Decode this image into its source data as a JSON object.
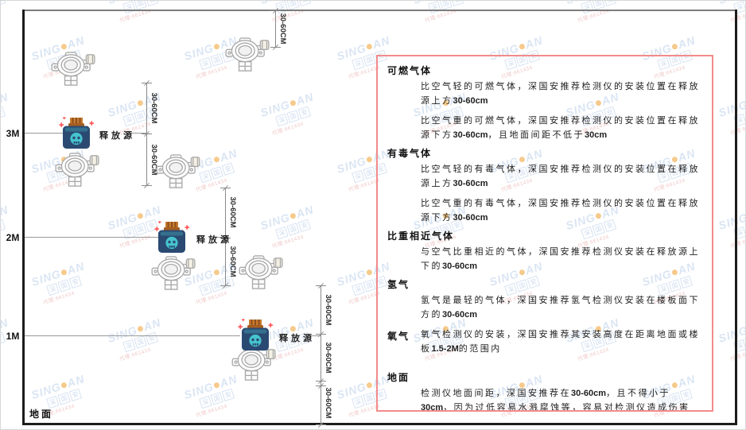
{
  "diagram": {
    "height_markers": [
      "3M",
      "2M",
      "1M"
    ],
    "release_source_label": "释放源",
    "dimension_label": "30-60CM",
    "ground_label": "地面"
  },
  "icons": {
    "detector": "gas-detector-icon",
    "source": "release-source-icon"
  },
  "watermark": {
    "brand_prefix": "SING",
    "brand_suffix": "AN",
    "brand_cn": "深国安",
    "contact": "代理:661434"
  },
  "panel": {
    "sections": [
      {
        "heading": "可燃气体",
        "paragraphs": [
          "比空气轻的可燃气体，深国安推荐检测仪的安装位置在释放源上方30-60cm",
          "比空气重的可燃气体，深国安推荐检测仪的安装位置在释放源下方30-60cm，且地面间距不低于30cm"
        ]
      },
      {
        "heading": "有毒气体",
        "paragraphs": [
          "比空气轻的有毒气体，深国安推荐检测仪的安装位置在释放源上方30-60cm",
          "比空气重的有毒气体，深国安推荐检测仪的安装位置在释放源下方30-60cm"
        ]
      },
      {
        "heading": "比重相近气体",
        "paragraphs": [
          "与空气比重相近的气体，深国安推荐检测仪安装在释放源上下的30-60cm"
        ]
      },
      {
        "heading": "氢气",
        "paragraphs": [
          "氢气是最轻的气体，深国安推荐氢气检测仪安装在楼板面下方的30-60cm"
        ]
      },
      {
        "heading": "氧气",
        "inline": true,
        "paragraphs": [
          "氧气检测仪的安装，深国安推荐其安装高度在距离地面或楼板1.5-2M的范围内"
        ]
      },
      {
        "heading": "地面",
        "extra_gap": true,
        "paragraphs": [
          "检测仪地面间距，深国安推荐在30-60cm，且不得小于30cm，因为过低容易水溅腐蚀等，容易对检测仪造成伤害"
        ]
      }
    ]
  },
  "colors": {
    "panel_border": "#f28b8b",
    "watermark_blue": "#bcd0ea",
    "watermark_orange": "#f0a030",
    "watermark_red": "#e49a9a",
    "line_gray": "#8a8a8a",
    "wall_black": "#1c1c1c",
    "source_navy": "#2a4a72",
    "source_teal": "#46c4ce",
    "cap_orange": "#c97a2e",
    "detector_gray": "#a9a9a9"
  }
}
